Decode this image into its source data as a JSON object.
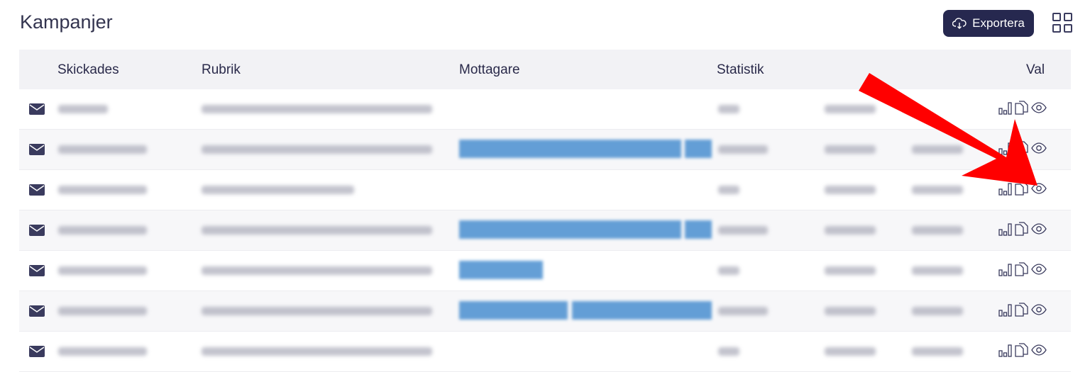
{
  "header": {
    "title": "Kampanjer",
    "export_label": "Exportera",
    "export_icon": "cloud-download-icon",
    "layout_icon": "grid-icon"
  },
  "table": {
    "columns": [
      "Skickades",
      "Rubrik",
      "Mottagare",
      "Statistik",
      "Val"
    ],
    "row_count": 7,
    "row_icon": "envelope-icon",
    "action_icons": [
      "bar-chart-icon",
      "copy-icon",
      "eye-icon"
    ],
    "recipients_tags_present": [
      false,
      true,
      false,
      true,
      true,
      true,
      false
    ]
  },
  "annotation": {
    "arrow_color": "#ff0000",
    "points_to": "eye-icon"
  },
  "colors": {
    "button": "#26284f",
    "tag": "#4a8fd0",
    "header_bg": "#f2f2f5"
  }
}
